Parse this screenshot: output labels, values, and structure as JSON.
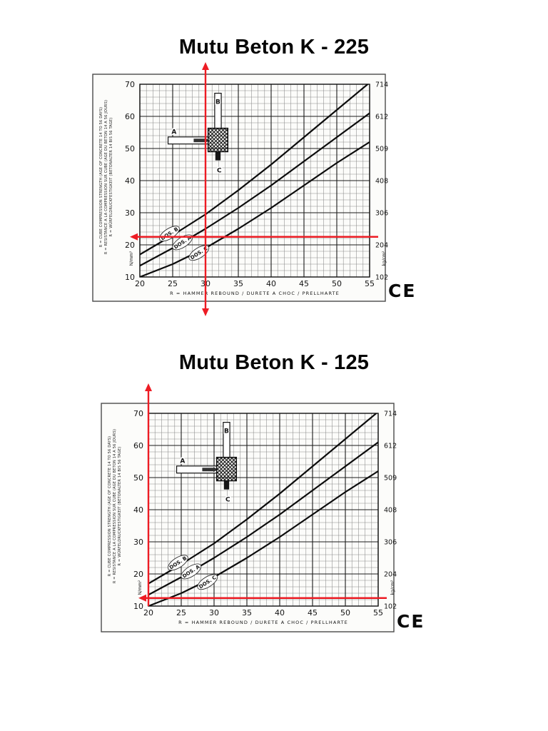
{
  "document": {
    "sections": [
      {
        "title": "Mutu Beton K - 225"
      },
      {
        "title": "Mutu Beton K - 125"
      }
    ]
  },
  "chart_data": [
    {
      "type": "line",
      "title": "Mutu Beton K - 225",
      "xlabel": "R = HAMMER REBOUND / DURETE A CHOC / PRELLHARTE",
      "ylabel_left": "N/mm²",
      "ylabel_right": "kg/cm²",
      "xlim": [
        20,
        55
      ],
      "ylim": [
        10,
        70
      ],
      "x_ticks": [
        20,
        25,
        30,
        35,
        40,
        45,
        50,
        55
      ],
      "y_ticks_left": [
        70,
        60,
        50,
        40,
        30,
        20,
        10
      ],
      "y_ticks_right": [
        714,
        612,
        509,
        408,
        306,
        204,
        102
      ],
      "grid": "minor+major",
      "legend_position": "on-curve",
      "x": [
        20,
        25,
        30,
        35,
        40,
        45,
        50,
        55
      ],
      "series": [
        {
          "name": "DOS. B",
          "values": [
            17,
            23,
            29.5,
            37,
            45,
            53.5,
            62,
            70.5
          ]
        },
        {
          "name": "DOS. A",
          "values": [
            13.5,
            19,
            25,
            31.5,
            38.5,
            46,
            53.5,
            61
          ]
        },
        {
          "name": "DOS. C",
          "values": [
            10,
            14,
            19,
            25,
            31.5,
            38.5,
            45.5,
            52
          ]
        }
      ],
      "series_label_pos": [
        [
          24.5,
          23.5
        ],
        [
          26.5,
          20.8
        ],
        [
          29,
          17.5
        ]
      ],
      "reading": {
        "rebound_R": 30,
        "strength_N_mm2": 22.5,
        "strength_kg_cm2": 225,
        "color": "#ed1c24"
      },
      "marker_arrows": {
        "vertical": [
          "up",
          "down"
        ],
        "horizontal": [
          "left"
        ]
      },
      "side_notes": [
        "R = CUBE COMPRESSION STRENGTH (AGE OF CONCRETE 14 TO 56 DAYS)",
        "R = RESISTANCE A LA COMPRESSION SUR CUBE (AGE DU BETON 14 A 56 JOURS)",
        "R = WÜRFELDRUCKFESTIGKEIT (BETONALTER 14 BIS 56 TAGE)"
      ],
      "schematic_labels": [
        "A",
        "B",
        "C"
      ],
      "ce_mark": "CE"
    },
    {
      "type": "line",
      "title": "Mutu Beton K - 125",
      "xlabel": "R = HAMMER REBOUND / DURETE A CHOC / PRELLHARTE",
      "ylabel_left": "N/mm²",
      "ylabel_right": "kg/cm²",
      "xlim": [
        20,
        55
      ],
      "ylim": [
        10,
        70
      ],
      "x_ticks": [
        20,
        25,
        30,
        35,
        40,
        45,
        50,
        55
      ],
      "y_ticks_left": [
        70,
        60,
        50,
        40,
        30,
        20,
        10
      ],
      "y_ticks_right": [
        714,
        612,
        509,
        408,
        306,
        204,
        102
      ],
      "grid": "minor+major",
      "legend_position": "on-curve",
      "x": [
        20,
        25,
        30,
        35,
        40,
        45,
        50,
        55
      ],
      "series": [
        {
          "name": "DOS. B",
          "values": [
            17,
            23,
            29.5,
            37,
            45,
            53.5,
            62,
            70.5
          ]
        },
        {
          "name": "DOS. A",
          "values": [
            13.5,
            19,
            25,
            31.5,
            38.5,
            46,
            53.5,
            61
          ]
        },
        {
          "name": "DOS. C",
          "values": [
            10,
            14,
            19,
            25,
            31.5,
            38.5,
            45.5,
            52
          ]
        }
      ],
      "series_label_pos": [
        [
          24.5,
          23.5
        ],
        [
          26.5,
          20.8
        ],
        [
          29,
          17.5
        ]
      ],
      "reading": {
        "rebound_R": 20,
        "strength_N_mm2": 12.5,
        "strength_kg_cm2": 125,
        "color": "#ed1c24"
      },
      "marker_arrows": {
        "vertical": [
          "up"
        ],
        "horizontal": [
          "left"
        ]
      },
      "side_notes": [
        "R = CUBE COMPRESSION STRENGTH (AGE OF CONCRETE 14 TO 56 DAYS)",
        "R = RESISTANCE A LA COMPRESSION SUR CUBE (AGE DU BETON 14 A 56 JOURS)",
        "R = WÜRFELDRUCKFESTIGKEIT (BETONALTER 14 BIS 56 TAGE)"
      ],
      "schematic_labels": [
        "A",
        "B",
        "C"
      ],
      "ce_mark": "CE"
    }
  ]
}
